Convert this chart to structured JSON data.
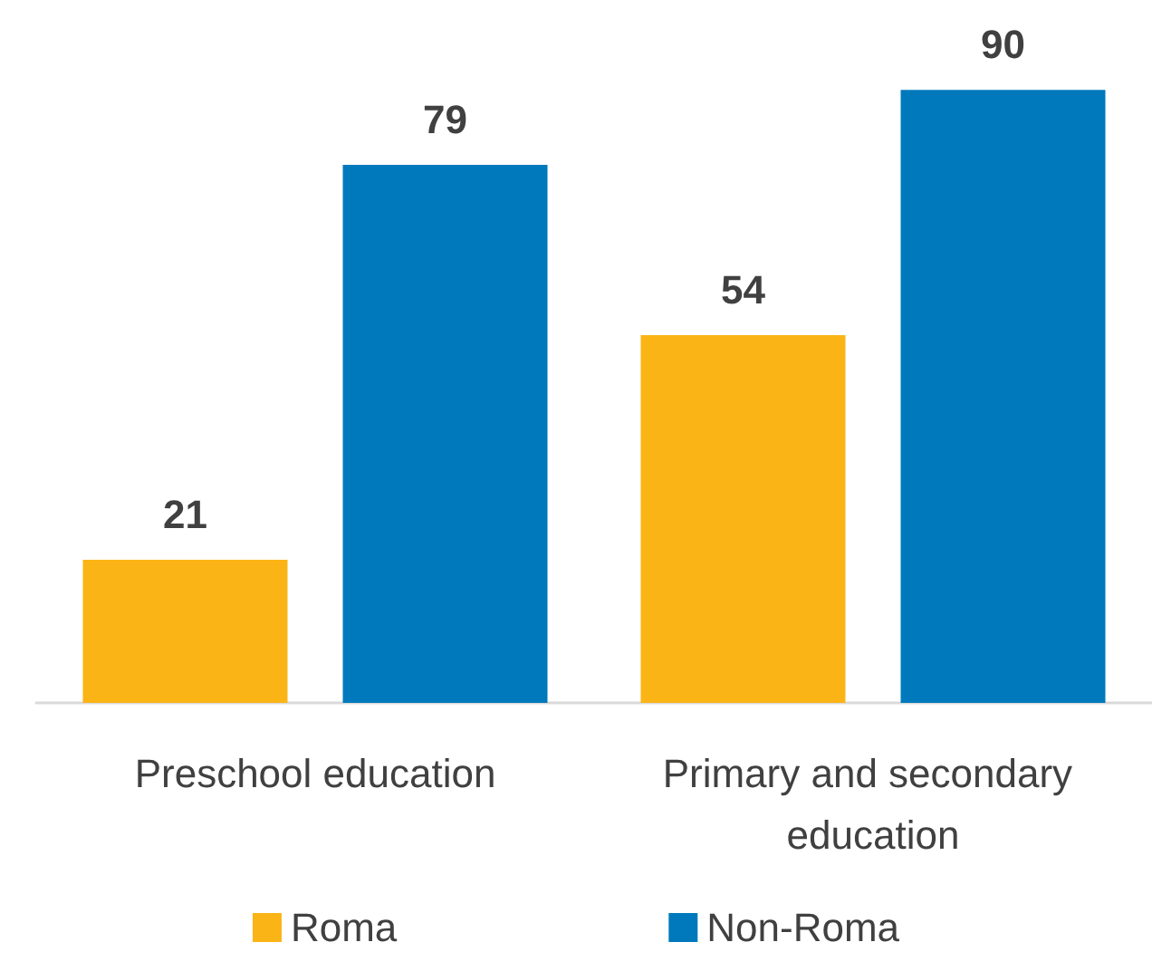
{
  "chart_data": {
    "type": "bar",
    "categories": [
      "Preschool education",
      "Primary and secondary education"
    ],
    "series": [
      {
        "name": "Roma",
        "color": "#fbb415",
        "values": [
          21,
          54
        ]
      },
      {
        "name": "Non-Roma",
        "color": "#0079bc",
        "values": [
          79,
          90
        ]
      }
    ],
    "data_labels": true,
    "legend": "bottom"
  }
}
